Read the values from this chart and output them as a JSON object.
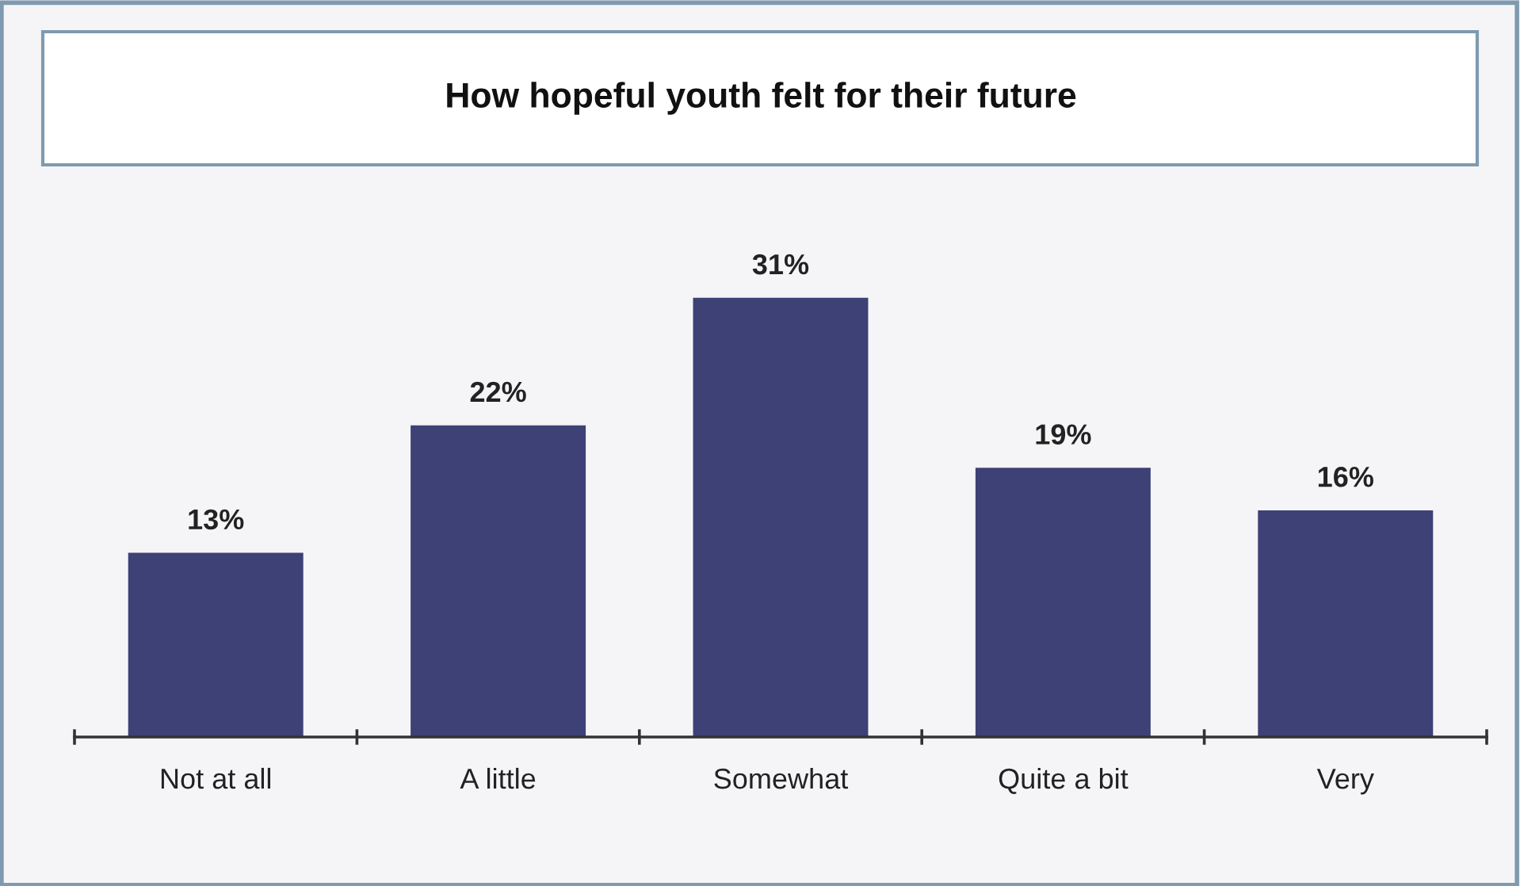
{
  "chart_data": {
    "type": "bar",
    "title": "How hopeful youth felt for their future",
    "categories": [
      "Not at all",
      "A little",
      "Somewhat",
      "Quite a bit",
      "Very"
    ],
    "values": [
      13,
      22,
      31,
      19,
      16
    ],
    "value_labels": [
      "13%",
      "22%",
      "31%",
      "19%",
      "16%"
    ],
    "color": "#3d4176",
    "tick_labels": "x",
    "grid": false,
    "legend": false
  }
}
